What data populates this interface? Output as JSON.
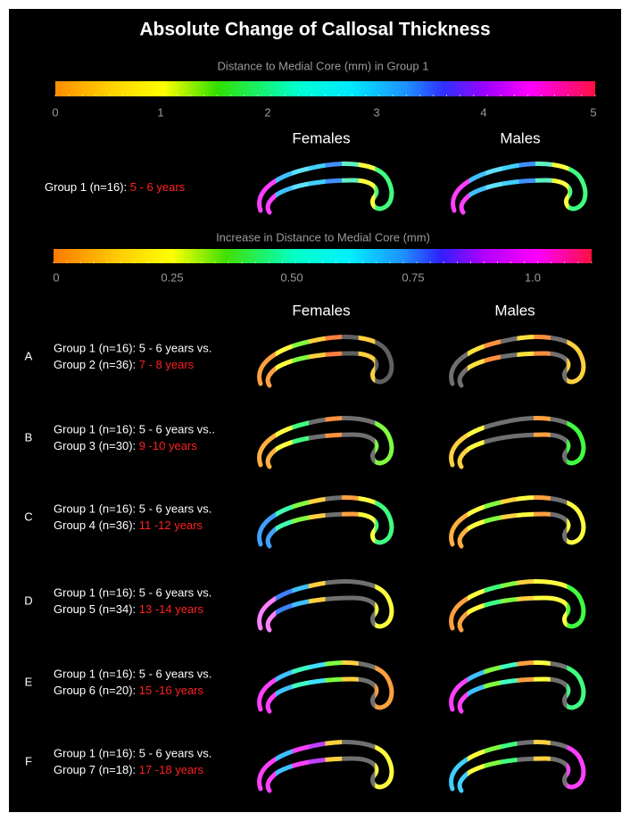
{
  "title": "Absolute Change of Callosal Thickness",
  "colorbar_1": {
    "label": "Distance to Medial Core (mm) in Group 1",
    "ticks": [
      "0",
      "1",
      "2",
      "3",
      "4",
      "5"
    ]
  },
  "reference": {
    "columns": [
      "Females",
      "Males"
    ],
    "group": "Group 1 (n=16): ",
    "age": "5 - 6 years"
  },
  "colorbar_2": {
    "label": "Increase in Distance to Medial Core (mm)",
    "ticks": [
      "0",
      "0.25",
      "0.50",
      "0.75",
      "1.0"
    ]
  },
  "comparison": {
    "columns": [
      "Females",
      "Males"
    ],
    "rows": [
      {
        "letter": "A",
        "line_1": "Group 1 (n=16): 5 - 6 years vs.",
        "group": "Group 2 (n=36): ",
        "age": "7 - 8 years"
      },
      {
        "letter": "B",
        "line_1": "Group 1 (n=16): 5 - 6 years vs..",
        "group": "Group 3 (n=30): ",
        "age": "9 -10 years"
      },
      {
        "letter": "C",
        "line_1": "Group 1 (n=16): 5 - 6 years vs.",
        "group": "Group 4 (n=36): ",
        "age": "11 -12 years"
      },
      {
        "letter": "D",
        "line_1": "Group 1 (n=16): 5 - 6 years vs.",
        "group": "Group 5 (n=34): ",
        "age": "13 -14 years"
      },
      {
        "letter": "E",
        "line_1": "Group 1 (n=16): 5 - 6 years vs.",
        "group": "Group 6 (n=20): ",
        "age": "15 -16 years"
      },
      {
        "letter": "F",
        "line_1": "Group 1 (n=16): 5 - 6 years vs.",
        "group": "Group 7 (n=18): ",
        "age": "17 -18 years"
      }
    ]
  }
}
